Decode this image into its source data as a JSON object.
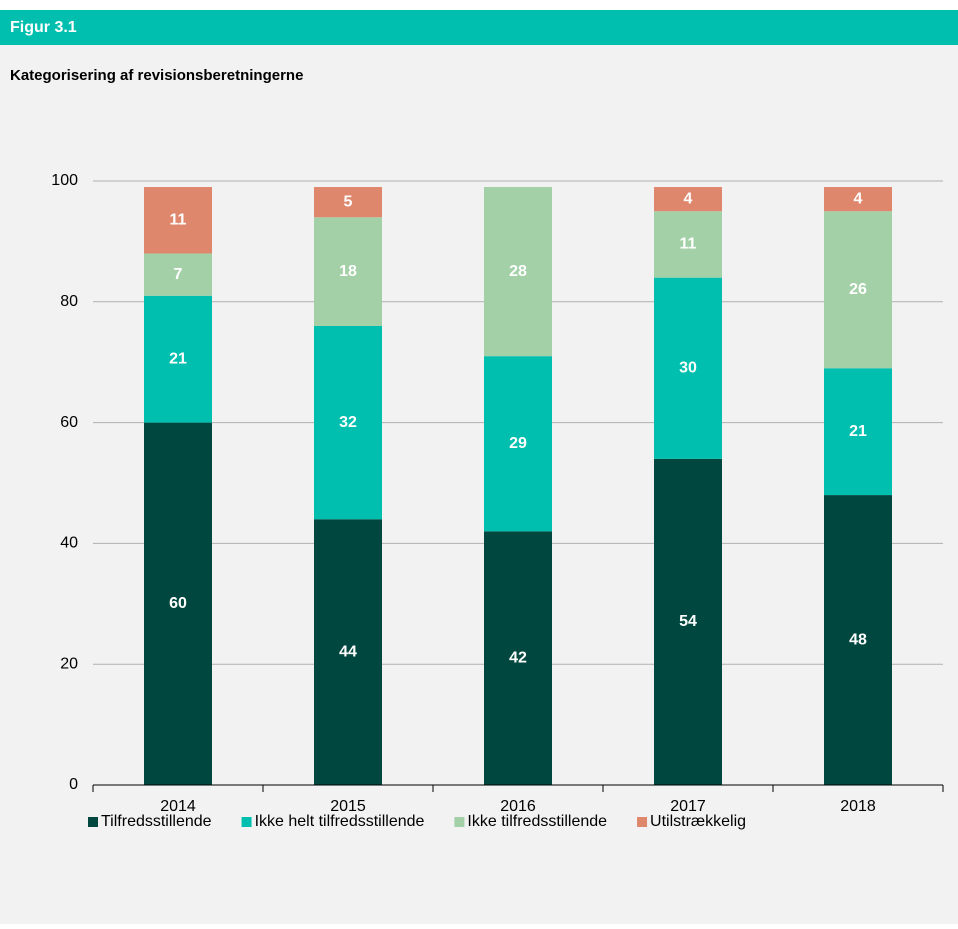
{
  "header": {
    "title": "Figur 3.1"
  },
  "chart_data": {
    "type": "stacked_bar",
    "title": "Kategorisering af revisionsberetningerne",
    "categories": [
      "2014",
      "2015",
      "2016",
      "2017",
      "2018"
    ],
    "series": [
      {
        "name": "Tilfredsstillende",
        "color": "#00483f",
        "values": [
          60,
          44,
          42,
          54,
          48
        ]
      },
      {
        "name": "Ikke helt tilfredsstillende",
        "color": "#00bfae",
        "values": [
          21,
          32,
          29,
          30,
          21
        ]
      },
      {
        "name": "Ikke tilfredsstillende",
        "color": "#a3d0a6",
        "values": [
          7,
          18,
          28,
          11,
          26
        ]
      },
      {
        "name": "Utilstrækkelig",
        "color": "#df876c",
        "values": [
          11,
          5,
          null,
          4,
          4
        ]
      }
    ],
    "ylim": [
      0,
      100
    ],
    "yticks": [
      0,
      20,
      40,
      60,
      80,
      100
    ],
    "grid": true,
    "legend": "bottom"
  }
}
